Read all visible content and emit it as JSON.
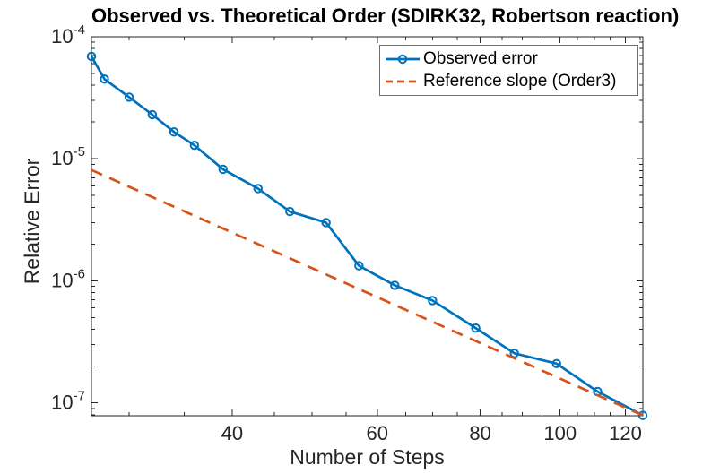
{
  "chart_data": {
    "type": "line",
    "title": "Observed vs. Theoretical Order (SDIRK32, Robertson reaction)",
    "xlabel": "Number of Steps",
    "ylabel": "Relative Error",
    "x_scale": "log",
    "y_scale": "log",
    "xlim": [
      27,
      126
    ],
    "ylim": [
      7.85e-08,
      0.0001
    ],
    "xticks": [
      40,
      60,
      80,
      100,
      120
    ],
    "xticks_minor": [
      30,
      35,
      45,
      50,
      55,
      65,
      70,
      75,
      85,
      90,
      95,
      105,
      110,
      115,
      125
    ],
    "ytick_exponents": [
      -4,
      -5,
      -6,
      -7
    ],
    "yticks_minor": [
      9e-05,
      8e-05,
      7e-05,
      6e-05,
      5e-05,
      4e-05,
      3e-05,
      2e-05,
      9e-06,
      8e-06,
      7e-06,
      6e-06,
      5e-06,
      4e-06,
      3e-06,
      2e-06,
      9e-07,
      8e-07,
      7e-07,
      6e-07,
      5e-07,
      4e-07,
      3e-07,
      2e-07,
      9e-08,
      8e-08
    ],
    "grid": false,
    "legend_position": "top-right",
    "series": [
      {
        "name": "Observed error",
        "color": "#0072BD",
        "style": "solid",
        "marker": "circle",
        "x": [
          27,
          28,
          30,
          32,
          34,
          36,
          39,
          43,
          47,
          52,
          57,
          63,
          70,
          79,
          88,
          99,
          111,
          126
        ],
        "y": [
          6.9e-05,
          4.5e-05,
          3.2e-05,
          2.3e-05,
          1.66e-05,
          1.29e-05,
          8.2e-06,
          5.7e-06,
          3.7e-06,
          3e-06,
          1.33e-06,
          9.2e-07,
          6.9e-07,
          4.1e-07,
          2.55e-07,
          2.1e-07,
          1.24e-07,
          7.9e-08
        ]
      },
      {
        "name": "Reference slope (Order3)",
        "color": "#D95319",
        "style": "dashed",
        "marker": "none",
        "x": [
          27,
          126
        ],
        "y": [
          8.1e-06,
          7.9e-08
        ]
      }
    ]
  },
  "colors": {
    "axis": "#262626",
    "tick_label": "#262626",
    "title": "#000000",
    "background": "#ffffff",
    "legend_border": "#707070"
  }
}
